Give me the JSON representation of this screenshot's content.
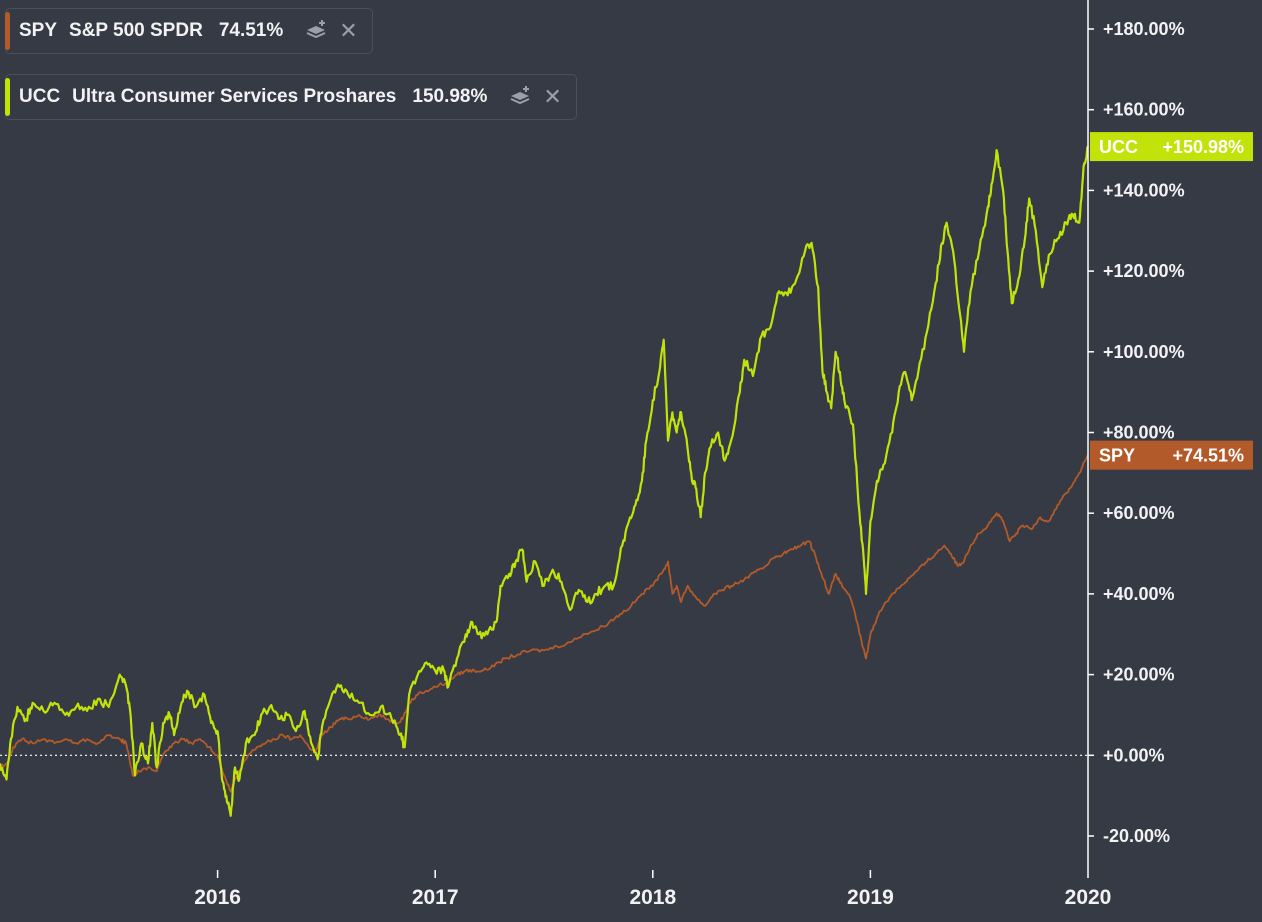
{
  "legend": [
    {
      "symbol": "SPY",
      "name": "S&P 500 SPDR",
      "value": "74.51%",
      "color": "#b35a2a"
    },
    {
      "symbol": "UCC",
      "name": "Ultra Consumer Services Proshares",
      "value": "150.98%",
      "color": "#c2e30a"
    }
  ],
  "badges": [
    {
      "symbol": "UCC",
      "value": "+150.98%",
      "color": "#c2e30a",
      "text_color": "#ffffff"
    },
    {
      "symbol": "SPY",
      "value": "+74.51%",
      "color": "#b35a2a",
      "text_color": "#ffffff"
    }
  ],
  "chart_data": {
    "type": "line",
    "x_axis": {
      "ticks": [
        "2016",
        "2017",
        "2018",
        "2019",
        "2020"
      ],
      "range": [
        2015.0,
        2020.0
      ]
    },
    "y_axis": {
      "ticks": [
        "+180.00%",
        "+160.00%",
        "+140.00%",
        "+120.00%",
        "+100.00%",
        "+80.00%",
        "+60.00%",
        "+40.00%",
        "+20.00%",
        "+0.00%",
        "-20.00%"
      ],
      "range": [
        -28,
        186
      ],
      "unit": "%",
      "position": "right"
    },
    "zero_line": true,
    "series": [
      {
        "name": "UCC",
        "color": "#c2e30a",
        "points": [
          [
            2015.0,
            -2
          ],
          [
            2015.03,
            -6
          ],
          [
            2015.05,
            4
          ],
          [
            2015.08,
            12
          ],
          [
            2015.12,
            9
          ],
          [
            2015.15,
            13
          ],
          [
            2015.2,
            11
          ],
          [
            2015.25,
            13
          ],
          [
            2015.3,
            10
          ],
          [
            2015.35,
            12
          ],
          [
            2015.4,
            11
          ],
          [
            2015.45,
            14
          ],
          [
            2015.5,
            12
          ],
          [
            2015.55,
            20
          ],
          [
            2015.58,
            17
          ],
          [
            2015.6,
            10
          ],
          [
            2015.62,
            -5
          ],
          [
            2015.65,
            3
          ],
          [
            2015.68,
            -2
          ],
          [
            2015.7,
            8
          ],
          [
            2015.72,
            -3
          ],
          [
            2015.75,
            8
          ],
          [
            2015.78,
            10
          ],
          [
            2015.8,
            5
          ],
          [
            2015.83,
            12
          ],
          [
            2015.86,
            16
          ],
          [
            2015.9,
            12
          ],
          [
            2015.94,
            15
          ],
          [
            2015.97,
            8
          ],
          [
            2016.0,
            6
          ],
          [
            2016.02,
            -6
          ],
          [
            2016.04,
            -10
          ],
          [
            2016.06,
            -15
          ],
          [
            2016.08,
            -3
          ],
          [
            2016.1,
            -6
          ],
          [
            2016.13,
            3
          ],
          [
            2016.17,
            5
          ],
          [
            2016.2,
            10
          ],
          [
            2016.24,
            12
          ],
          [
            2016.28,
            9
          ],
          [
            2016.32,
            10
          ],
          [
            2016.36,
            6
          ],
          [
            2016.4,
            11
          ],
          [
            2016.43,
            3
          ],
          [
            2016.46,
            -1
          ],
          [
            2016.48,
            7
          ],
          [
            2016.52,
            14
          ],
          [
            2016.56,
            17
          ],
          [
            2016.6,
            15
          ],
          [
            2016.65,
            13
          ],
          [
            2016.7,
            10
          ],
          [
            2016.75,
            12
          ],
          [
            2016.8,
            9
          ],
          [
            2016.84,
            5
          ],
          [
            2016.86,
            2
          ],
          [
            2016.88,
            15
          ],
          [
            2016.92,
            20
          ],
          [
            2016.96,
            23
          ],
          [
            2017.0,
            21
          ],
          [
            2017.04,
            21
          ],
          [
            2017.06,
            17
          ],
          [
            2017.1,
            24
          ],
          [
            2017.14,
            30
          ],
          [
            2017.17,
            33
          ],
          [
            2017.2,
            30
          ],
          [
            2017.24,
            30
          ],
          [
            2017.28,
            33
          ],
          [
            2017.3,
            42
          ],
          [
            2017.34,
            45
          ],
          [
            2017.37,
            48
          ],
          [
            2017.4,
            51
          ],
          [
            2017.42,
            43
          ],
          [
            2017.46,
            48
          ],
          [
            2017.5,
            42
          ],
          [
            2017.54,
            46
          ],
          [
            2017.58,
            43
          ],
          [
            2017.62,
            36
          ],
          [
            2017.66,
            41
          ],
          [
            2017.7,
            38
          ],
          [
            2017.74,
            40
          ],
          [
            2017.78,
            42
          ],
          [
            2017.82,
            42
          ],
          [
            2017.86,
            52
          ],
          [
            2017.89,
            58
          ],
          [
            2017.92,
            62
          ],
          [
            2017.95,
            68
          ],
          [
            2017.97,
            78
          ],
          [
            2018.0,
            88
          ],
          [
            2018.03,
            95
          ],
          [
            2018.05,
            103
          ],
          [
            2018.07,
            78
          ],
          [
            2018.09,
            85
          ],
          [
            2018.11,
            80
          ],
          [
            2018.13,
            85
          ],
          [
            2018.16,
            76
          ],
          [
            2018.18,
            68
          ],
          [
            2018.2,
            66
          ],
          [
            2018.22,
            59
          ],
          [
            2018.24,
            70
          ],
          [
            2018.26,
            76
          ],
          [
            2018.3,
            80
          ],
          [
            2018.33,
            73
          ],
          [
            2018.36,
            78
          ],
          [
            2018.4,
            90
          ],
          [
            2018.42,
            98
          ],
          [
            2018.46,
            94
          ],
          [
            2018.5,
            104
          ],
          [
            2018.54,
            106
          ],
          [
            2018.58,
            115
          ],
          [
            2018.62,
            114
          ],
          [
            2018.66,
            118
          ],
          [
            2018.7,
            125
          ],
          [
            2018.73,
            127
          ],
          [
            2018.76,
            116
          ],
          [
            2018.78,
            95
          ],
          [
            2018.8,
            90
          ],
          [
            2018.82,
            86
          ],
          [
            2018.84,
            100
          ],
          [
            2018.86,
            95
          ],
          [
            2018.88,
            88
          ],
          [
            2018.92,
            82
          ],
          [
            2018.95,
            60
          ],
          [
            2018.97,
            48
          ],
          [
            2018.98,
            40
          ],
          [
            2019.0,
            58
          ],
          [
            2019.03,
            68
          ],
          [
            2019.06,
            72
          ],
          [
            2019.1,
            80
          ],
          [
            2019.13,
            90
          ],
          [
            2019.16,
            95
          ],
          [
            2019.19,
            88
          ],
          [
            2019.22,
            95
          ],
          [
            2019.26,
            105
          ],
          [
            2019.3,
            117
          ],
          [
            2019.33,
            127
          ],
          [
            2019.35,
            132
          ],
          [
            2019.38,
            125
          ],
          [
            2019.41,
            110
          ],
          [
            2019.43,
            100
          ],
          [
            2019.46,
            115
          ],
          [
            2019.5,
            125
          ],
          [
            2019.54,
            136
          ],
          [
            2019.56,
            142
          ],
          [
            2019.58,
            150
          ],
          [
            2019.61,
            140
          ],
          [
            2019.63,
            125
          ],
          [
            2019.65,
            112
          ],
          [
            2019.68,
            118
          ],
          [
            2019.71,
            128
          ],
          [
            2019.73,
            138
          ],
          [
            2019.76,
            130
          ],
          [
            2019.79,
            116
          ],
          [
            2019.82,
            124
          ],
          [
            2019.86,
            128
          ],
          [
            2019.9,
            132
          ],
          [
            2019.93,
            134
          ],
          [
            2019.96,
            132
          ],
          [
            2019.98,
            146
          ],
          [
            2020.0,
            150.98
          ]
        ]
      },
      {
        "name": "SPY",
        "color": "#b35a2a",
        "points": [
          [
            2015.0,
            -3
          ],
          [
            2015.03,
            -2
          ],
          [
            2015.06,
            2
          ],
          [
            2015.1,
            4
          ],
          [
            2015.15,
            3
          ],
          [
            2015.2,
            4
          ],
          [
            2015.25,
            3
          ],
          [
            2015.3,
            4
          ],
          [
            2015.35,
            3
          ],
          [
            2015.4,
            4
          ],
          [
            2015.45,
            3
          ],
          [
            2015.5,
            5
          ],
          [
            2015.55,
            4
          ],
          [
            2015.58,
            3
          ],
          [
            2015.61,
            -5
          ],
          [
            2015.64,
            -4
          ],
          [
            2015.68,
            -3
          ],
          [
            2015.72,
            -4
          ],
          [
            2015.76,
            1
          ],
          [
            2015.8,
            3
          ],
          [
            2015.84,
            4
          ],
          [
            2015.88,
            3
          ],
          [
            2015.92,
            4
          ],
          [
            2015.96,
            2
          ],
          [
            2016.0,
            0
          ],
          [
            2016.03,
            -5
          ],
          [
            2016.06,
            -9
          ],
          [
            2016.08,
            -6
          ],
          [
            2016.11,
            -3
          ],
          [
            2016.14,
            0
          ],
          [
            2016.18,
            2
          ],
          [
            2016.22,
            3
          ],
          [
            2016.26,
            4
          ],
          [
            2016.3,
            5
          ],
          [
            2016.34,
            4
          ],
          [
            2016.38,
            5
          ],
          [
            2016.42,
            2
          ],
          [
            2016.45,
            1
          ],
          [
            2016.48,
            5
          ],
          [
            2016.52,
            7
          ],
          [
            2016.56,
            9
          ],
          [
            2016.6,
            9
          ],
          [
            2016.65,
            10
          ],
          [
            2016.7,
            9
          ],
          [
            2016.74,
            10
          ],
          [
            2016.78,
            9
          ],
          [
            2016.82,
            8
          ],
          [
            2016.85,
            9
          ],
          [
            2016.88,
            13
          ],
          [
            2016.92,
            15
          ],
          [
            2016.96,
            16
          ],
          [
            2017.0,
            17
          ],
          [
            2017.05,
            18
          ],
          [
            2017.1,
            20
          ],
          [
            2017.14,
            21
          ],
          [
            2017.18,
            21
          ],
          [
            2017.22,
            21
          ],
          [
            2017.27,
            22
          ],
          [
            2017.32,
            24
          ],
          [
            2017.38,
            25
          ],
          [
            2017.44,
            26
          ],
          [
            2017.5,
            26
          ],
          [
            2017.56,
            27
          ],
          [
            2017.62,
            28
          ],
          [
            2017.68,
            30
          ],
          [
            2017.74,
            31
          ],
          [
            2017.8,
            33
          ],
          [
            2017.85,
            35
          ],
          [
            2017.9,
            37
          ],
          [
            2017.95,
            40
          ],
          [
            2018.0,
            42
          ],
          [
            2018.04,
            45
          ],
          [
            2018.07,
            48
          ],
          [
            2018.09,
            40
          ],
          [
            2018.11,
            42
          ],
          [
            2018.13,
            38
          ],
          [
            2018.16,
            42
          ],
          [
            2018.2,
            39
          ],
          [
            2018.24,
            37
          ],
          [
            2018.28,
            40
          ],
          [
            2018.32,
            41
          ],
          [
            2018.36,
            42
          ],
          [
            2018.4,
            43
          ],
          [
            2018.44,
            44
          ],
          [
            2018.48,
            46
          ],
          [
            2018.52,
            47
          ],
          [
            2018.56,
            49
          ],
          [
            2018.6,
            50
          ],
          [
            2018.64,
            51
          ],
          [
            2018.68,
            52
          ],
          [
            2018.72,
            53
          ],
          [
            2018.75,
            49
          ],
          [
            2018.78,
            44
          ],
          [
            2018.81,
            40
          ],
          [
            2018.84,
            45
          ],
          [
            2018.87,
            42
          ],
          [
            2018.9,
            40
          ],
          [
            2018.93,
            35
          ],
          [
            2018.96,
            28
          ],
          [
            2018.98,
            24
          ],
          [
            2019.0,
            30
          ],
          [
            2019.03,
            34
          ],
          [
            2019.06,
            37
          ],
          [
            2019.1,
            40
          ],
          [
            2019.14,
            42
          ],
          [
            2019.18,
            44
          ],
          [
            2019.22,
            46
          ],
          [
            2019.26,
            48
          ],
          [
            2019.3,
            50
          ],
          [
            2019.34,
            52
          ],
          [
            2019.37,
            50
          ],
          [
            2019.4,
            47
          ],
          [
            2019.43,
            48
          ],
          [
            2019.46,
            52
          ],
          [
            2019.5,
            55
          ],
          [
            2019.54,
            57
          ],
          [
            2019.58,
            60
          ],
          [
            2019.61,
            58
          ],
          [
            2019.64,
            53
          ],
          [
            2019.67,
            55
          ],
          [
            2019.7,
            57
          ],
          [
            2019.74,
            56
          ],
          [
            2019.78,
            59
          ],
          [
            2019.82,
            58
          ],
          [
            2019.86,
            62
          ],
          [
            2019.9,
            65
          ],
          [
            2019.94,
            68
          ],
          [
            2019.97,
            71
          ],
          [
            2020.0,
            74.51
          ]
        ]
      }
    ]
  }
}
